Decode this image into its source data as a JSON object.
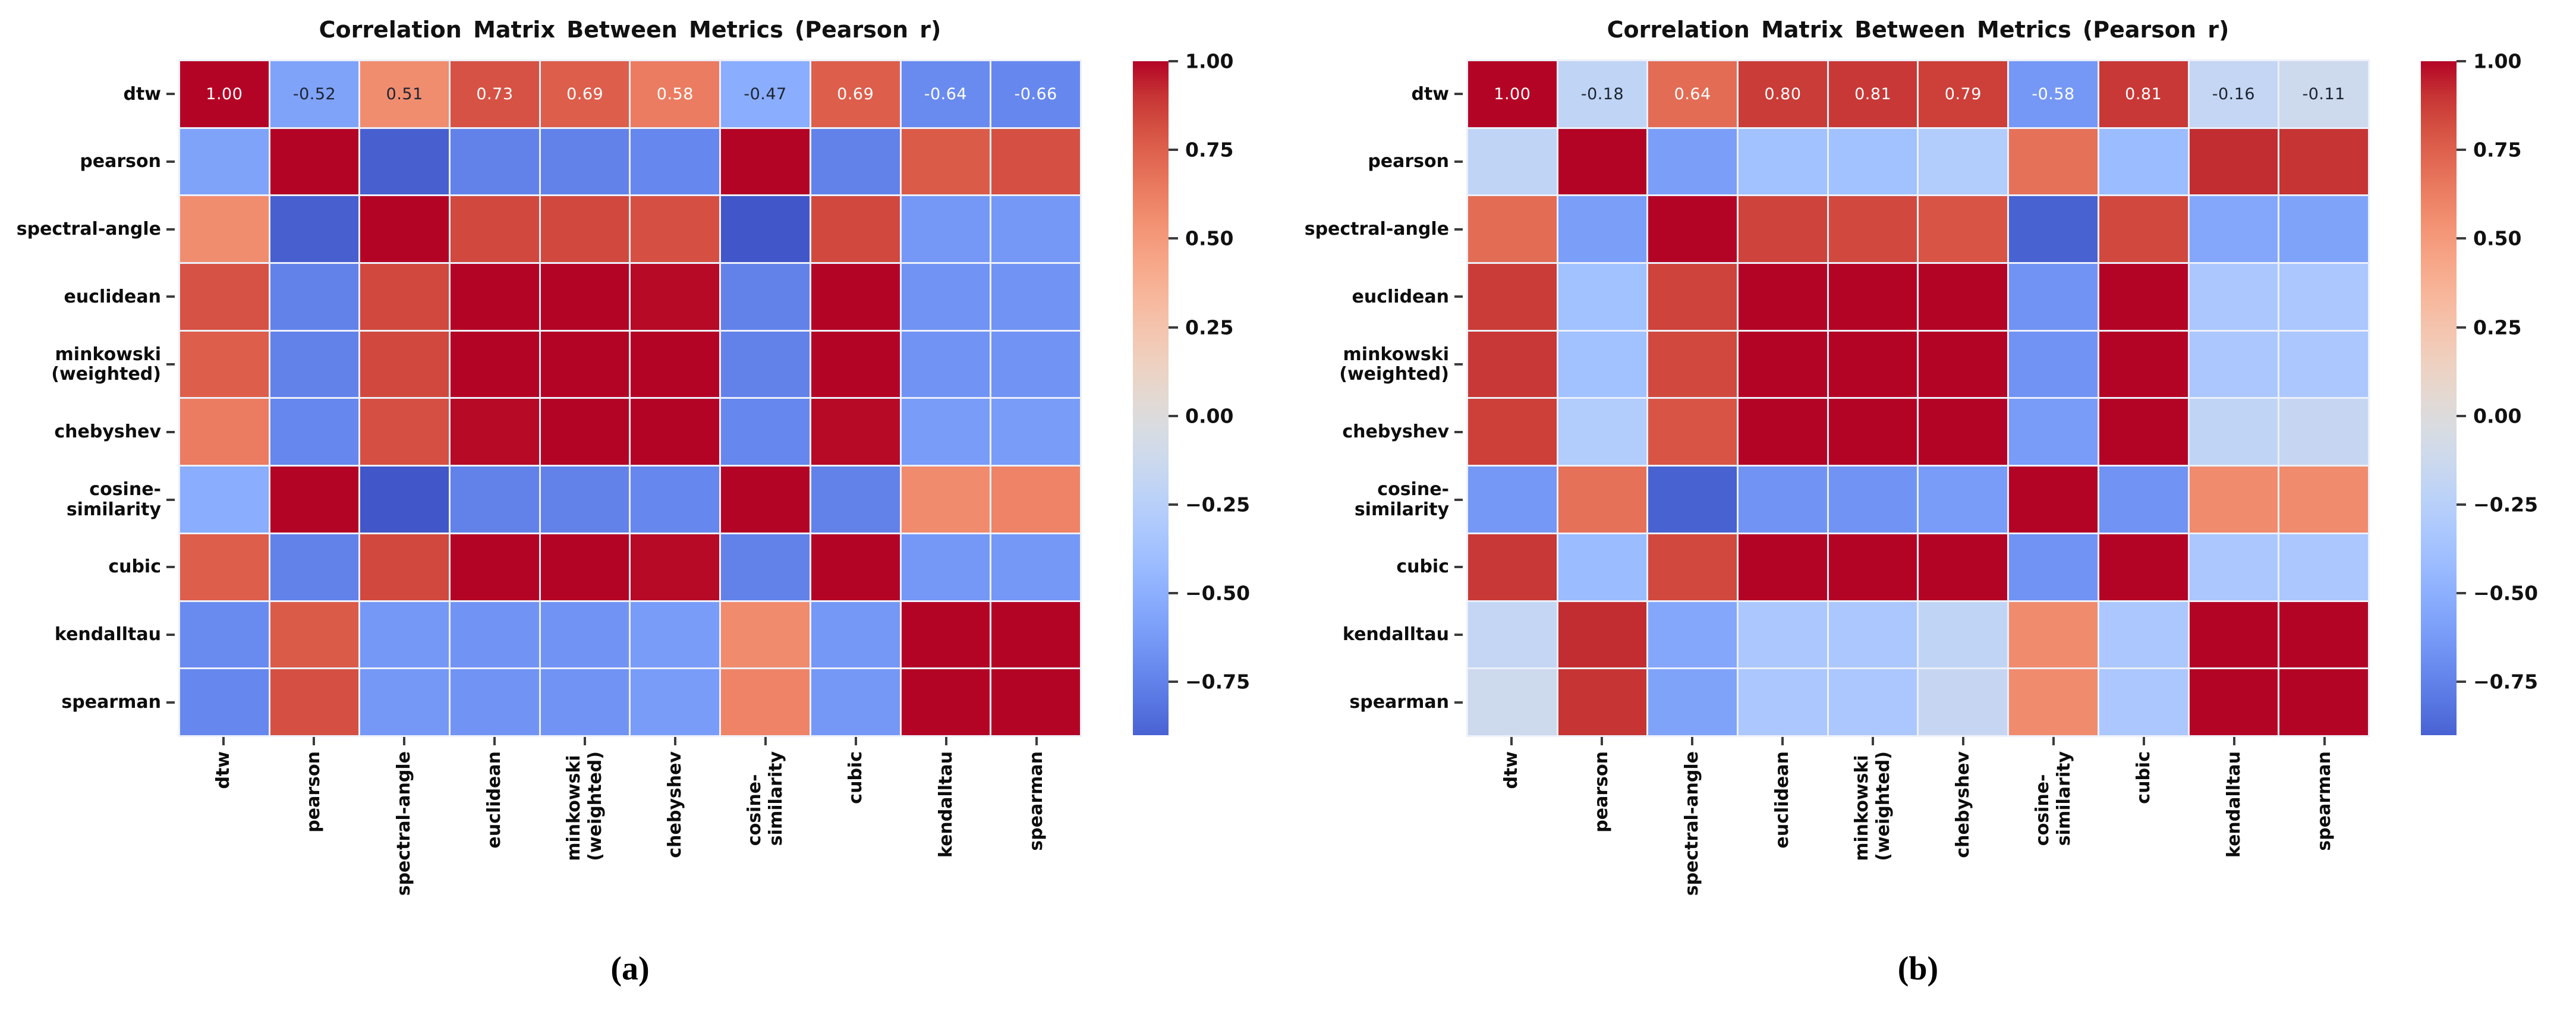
{
  "figure_type": "dual-heatmap-scientific-figure",
  "colors": {
    "background": "#ffffff",
    "colormap_name": "coolwarm",
    "colormap_low": "#3b4cc0",
    "colormap_mid": "#dddddd",
    "colormap_high": "#b40426",
    "gridline": "#edf0fa",
    "annotation_light": "#ffffff",
    "annotation_dark": "#1c2430",
    "label_text": "#0d0d0d",
    "tick_mark": "#3c3c3c"
  },
  "chart_data": [
    {
      "type": "heatmap",
      "title": "Correlation Matrix Between Metrics (Pearson r)",
      "caption": "(a)",
      "legend_position": "right",
      "vmin": -1,
      "vmax": 1,
      "colorbar_bottom_value": -0.9,
      "grid": true,
      "annotated_rows": [
        0
      ],
      "annotation_format": ".2f",
      "categories": [
        "dtw",
        "pearson",
        "spectral-angle",
        "euclidean",
        "minkowski (weighted)",
        "chebyshev",
        "cosine-similarity",
        "cubic",
        "kendalltau",
        "spearman"
      ],
      "label_lines": [
        [
          "dtw"
        ],
        [
          "pearson"
        ],
        [
          "spectral-angle"
        ],
        [
          "euclidean"
        ],
        [
          "minkowski",
          "(weighted)"
        ],
        [
          "chebyshev"
        ],
        [
          "cosine-",
          "similarity"
        ],
        [
          "cubic"
        ],
        [
          "kendalltau"
        ],
        [
          "spearman"
        ]
      ],
      "matrix": [
        [
          1.0,
          -0.52,
          0.51,
          0.73,
          0.69,
          0.58,
          -0.47,
          0.69,
          -0.64,
          -0.66
        ],
        [
          -0.52,
          1.0,
          -0.83,
          -0.68,
          -0.68,
          -0.66,
          0.95,
          -0.68,
          0.7,
          0.74
        ],
        [
          0.51,
          -0.83,
          1.0,
          0.76,
          0.76,
          0.74,
          -0.87,
          0.76,
          -0.58,
          -0.58
        ],
        [
          0.73,
          -0.68,
          0.76,
          1.0,
          0.97,
          0.9,
          -0.68,
          0.94,
          -0.6,
          -0.6
        ],
        [
          0.69,
          -0.68,
          0.76,
          0.97,
          1.0,
          0.92,
          -0.68,
          0.96,
          -0.6,
          -0.6
        ],
        [
          0.58,
          -0.66,
          0.74,
          0.9,
          0.92,
          1.0,
          -0.66,
          0.9,
          -0.56,
          -0.56
        ],
        [
          -0.47,
          0.95,
          -0.87,
          -0.68,
          -0.68,
          -0.66,
          1.0,
          -0.68,
          0.52,
          0.55
        ],
        [
          0.69,
          -0.68,
          0.76,
          0.94,
          0.96,
          0.9,
          -0.68,
          1.0,
          -0.58,
          -0.58
        ],
        [
          -0.64,
          0.7,
          -0.58,
          -0.6,
          -0.6,
          -0.56,
          0.52,
          -0.58,
          1.0,
          0.97
        ],
        [
          -0.66,
          0.74,
          -0.58,
          -0.6,
          -0.6,
          -0.56,
          0.55,
          -0.58,
          0.97,
          1.0
        ]
      ],
      "colorbar_ticks": [
        {
          "label": "1.00",
          "value": 1.0
        },
        {
          "label": "0.75",
          "value": 0.75
        },
        {
          "label": "0.50",
          "value": 0.5
        },
        {
          "label": "0.25",
          "value": 0.25
        },
        {
          "label": "0.00",
          "value": 0.0
        },
        {
          "label": "−0.25",
          "value": -0.25
        },
        {
          "label": "−0.50",
          "value": -0.5
        },
        {
          "label": "−0.75",
          "value": -0.75
        }
      ]
    },
    {
      "type": "heatmap",
      "title": "Correlation Matrix Between Metrics (Pearson r)",
      "caption": "(b)",
      "legend_position": "right",
      "vmin": -1,
      "vmax": 1,
      "colorbar_bottom_value": -0.9,
      "grid": true,
      "annotated_rows": [
        0
      ],
      "annotation_format": ".2f",
      "categories": [
        "dtw",
        "pearson",
        "spectral-angle",
        "euclidean",
        "minkowski (weighted)",
        "chebyshev",
        "cosine-similarity",
        "cubic",
        "kendalltau",
        "spearman"
      ],
      "label_lines": [
        [
          "dtw"
        ],
        [
          "pearson"
        ],
        [
          "spectral-angle"
        ],
        [
          "euclidean"
        ],
        [
          "minkowski",
          "(weighted)"
        ],
        [
          "chebyshev"
        ],
        [
          "cosine-",
          "similarity"
        ],
        [
          "cubic"
        ],
        [
          "kendalltau"
        ],
        [
          "spearman"
        ]
      ],
      "matrix": [
        [
          1.0,
          -0.18,
          0.64,
          0.8,
          0.81,
          0.79,
          -0.58,
          0.81,
          -0.16,
          -0.11
        ],
        [
          -0.18,
          1.0,
          -0.55,
          -0.35,
          -0.35,
          -0.26,
          0.62,
          -0.38,
          0.84,
          0.82
        ],
        [
          0.64,
          -0.55,
          1.0,
          0.78,
          0.76,
          0.72,
          -0.82,
          0.76,
          -0.5,
          -0.52
        ],
        [
          0.8,
          -0.35,
          0.78,
          1.0,
          0.97,
          0.92,
          -0.6,
          0.95,
          -0.3,
          -0.3
        ],
        [
          0.81,
          -0.35,
          0.76,
          0.97,
          1.0,
          0.94,
          -0.6,
          0.95,
          -0.3,
          -0.3
        ],
        [
          0.79,
          -0.26,
          0.72,
          0.92,
          0.94,
          1.0,
          -0.56,
          0.92,
          -0.18,
          -0.15
        ],
        [
          -0.58,
          0.62,
          -0.82,
          -0.6,
          -0.6,
          -0.56,
          1.0,
          -0.6,
          0.52,
          0.52
        ],
        [
          0.81,
          -0.38,
          0.76,
          0.95,
          0.95,
          0.92,
          -0.6,
          1.0,
          -0.3,
          -0.3
        ],
        [
          -0.16,
          0.84,
          -0.5,
          -0.3,
          -0.3,
          -0.18,
          0.52,
          -0.3,
          1.0,
          0.97
        ],
        [
          -0.11,
          0.82,
          -0.52,
          -0.3,
          -0.3,
          -0.15,
          0.52,
          -0.3,
          0.97,
          1.0
        ]
      ],
      "colorbar_ticks": [
        {
          "label": "1.00",
          "value": 1.0
        },
        {
          "label": "0.75",
          "value": 0.75
        },
        {
          "label": "0.50",
          "value": 0.5
        },
        {
          "label": "0.25",
          "value": 0.25
        },
        {
          "label": "0.00",
          "value": 0.0
        },
        {
          "label": "−0.25",
          "value": -0.25
        },
        {
          "label": "−0.50",
          "value": -0.5
        },
        {
          "label": "−0.75",
          "value": -0.75
        }
      ]
    }
  ]
}
